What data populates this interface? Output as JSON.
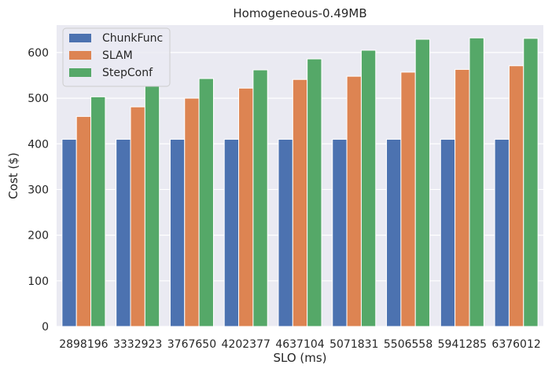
{
  "chart_data": {
    "type": "bar",
    "title": "Homogeneous-0.49MB",
    "xlabel": "SLO (ms)",
    "ylabel": "Cost ($)",
    "ylim": [
      0,
      660
    ],
    "yticks": [
      0,
      100,
      200,
      300,
      400,
      500,
      600
    ],
    "grid": true,
    "legend_position": "top-left",
    "categories": [
      "2898196",
      "3332923",
      "3767650",
      "4202377",
      "4637104",
      "5071831",
      "5506558",
      "5941285",
      "6376012"
    ],
    "series": [
      {
        "name": "ChunkFunc",
        "color": "#4c72b0",
        "values": [
          410,
          410,
          410,
          410,
          410,
          410,
          410,
          410,
          410
        ]
      },
      {
        "name": "SLAM",
        "color": "#dd8452",
        "values": [
          460,
          481,
          500,
          522,
          541,
          548,
          557,
          563,
          571
        ]
      },
      {
        "name": "StepConf",
        "color": "#55a868",
        "values": [
          503,
          526,
          543,
          562,
          586,
          605,
          629,
          632,
          631
        ]
      }
    ]
  },
  "colors": {
    "plot_background": "#eaeaf2",
    "grid": "#ffffff"
  }
}
